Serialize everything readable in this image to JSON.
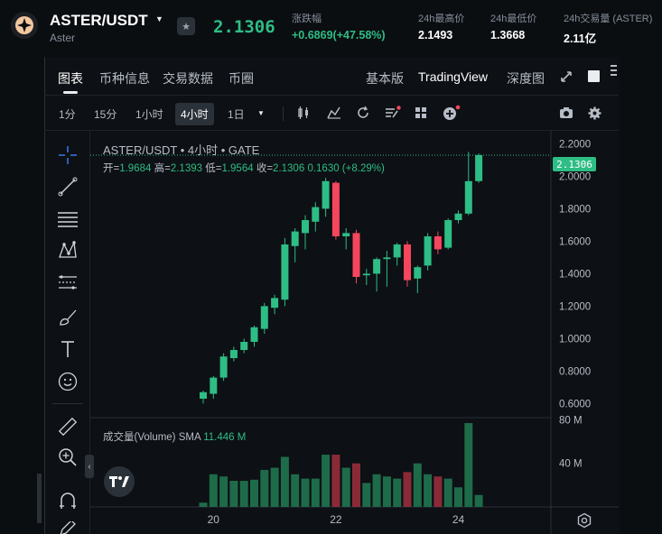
{
  "header": {
    "pair": "ASTER/USDT",
    "base_name": "Aster",
    "last_price": "2.1306",
    "stats": [
      {
        "label": "涨跌幅",
        "value": "+0.6869(+47.58%)",
        "color": "#2ebd85"
      },
      {
        "label": "24h最高价",
        "value": "2.1493",
        "color": "#ffffff"
      },
      {
        "label": "24h最低价",
        "value": "1.3668",
        "color": "#ffffff"
      },
      {
        "label": "24h交易量 (ASTER)",
        "value": "2.11亿",
        "color": "#ffffff"
      }
    ]
  },
  "tabs": {
    "left": [
      "图表",
      "币种信息",
      "交易数据",
      "币圈"
    ],
    "right": [
      "基本版",
      "TradingView",
      "深度图"
    ],
    "active": "图表"
  },
  "intervals": [
    "1分",
    "15分",
    "1小时",
    "4小时",
    "1日"
  ],
  "active_interval": "4小时",
  "legend": {
    "title": "ASTER/USDT • 4小时 • GATE",
    "open_label": "开=",
    "open": "1.9684",
    "high_label": "高=",
    "high": "2.1393",
    "low_label": "低=",
    "low": "1.9564",
    "close_label": "收=",
    "close": "2.1306",
    "change": "0.1630 (+8.29%)",
    "volume_label": "成交量(Volume)",
    "sma_label": "SMA",
    "volume_value": "11.446 M",
    "last_price_tag": "2.1306"
  },
  "colors": {
    "up": "#2ebd85",
    "down": "#f6465d",
    "accent": "#2ebd85"
  },
  "chart_data": {
    "type": "candlestick",
    "price_axis": [
      "2.2000",
      "2.0000",
      "1.8000",
      "1.6000",
      "1.4000",
      "1.2000",
      "1.0000",
      "0.8000",
      "0.6000"
    ],
    "volume_axis": [
      "80 M",
      "40 M"
    ],
    "x_ticks": [
      "20",
      "22",
      "24"
    ],
    "ylim": [
      0.53,
      2.28
    ],
    "volume_ylim": [
      0,
      82
    ],
    "candles": [
      {
        "o": 0.63,
        "h": 0.68,
        "l": 0.6,
        "c": 0.67,
        "v": 4
      },
      {
        "o": 0.66,
        "h": 0.77,
        "l": 0.63,
        "c": 0.76,
        "v": 30
      },
      {
        "o": 0.76,
        "h": 0.91,
        "l": 0.74,
        "c": 0.89,
        "v": 28
      },
      {
        "o": 0.88,
        "h": 0.95,
        "l": 0.86,
        "c": 0.93,
        "v": 24
      },
      {
        "o": 0.93,
        "h": 1.0,
        "l": 0.91,
        "c": 0.98,
        "v": 24
      },
      {
        "o": 0.98,
        "h": 1.08,
        "l": 0.95,
        "c": 1.07,
        "v": 25
      },
      {
        "o": 1.06,
        "h": 1.22,
        "l": 1.03,
        "c": 1.2,
        "v": 34
      },
      {
        "o": 1.19,
        "h": 1.27,
        "l": 1.15,
        "c": 1.25,
        "v": 36
      },
      {
        "o": 1.24,
        "h": 1.62,
        "l": 1.2,
        "c": 1.58,
        "v": 46
      },
      {
        "o": 1.57,
        "h": 1.68,
        "l": 1.47,
        "c": 1.66,
        "v": 30
      },
      {
        "o": 1.65,
        "h": 1.76,
        "l": 1.55,
        "c": 1.73,
        "v": 26
      },
      {
        "o": 1.72,
        "h": 1.84,
        "l": 1.66,
        "c": 1.81,
        "v": 26
      },
      {
        "o": 1.8,
        "h": 1.99,
        "l": 1.75,
        "c": 1.97,
        "v": 48
      },
      {
        "o": 1.96,
        "h": 1.97,
        "l": 1.61,
        "c": 1.63,
        "v": 48
      },
      {
        "o": 1.63,
        "h": 1.68,
        "l": 1.55,
        "c": 1.65,
        "v": 36
      },
      {
        "o": 1.65,
        "h": 1.67,
        "l": 1.34,
        "c": 1.38,
        "v": 40
      },
      {
        "o": 1.39,
        "h": 1.43,
        "l": 1.33,
        "c": 1.4,
        "v": 22
      },
      {
        "o": 1.4,
        "h": 1.5,
        "l": 1.29,
        "c": 1.49,
        "v": 30
      },
      {
        "o": 1.49,
        "h": 1.54,
        "l": 1.32,
        "c": 1.5,
        "v": 28
      },
      {
        "o": 1.5,
        "h": 1.59,
        "l": 1.45,
        "c": 1.58,
        "v": 26
      },
      {
        "o": 1.58,
        "h": 1.6,
        "l": 1.32,
        "c": 1.36,
        "v": 32
      },
      {
        "o": 1.37,
        "h": 1.45,
        "l": 1.28,
        "c": 1.44,
        "v": 40
      },
      {
        "o": 1.45,
        "h": 1.65,
        "l": 1.42,
        "c": 1.63,
        "v": 30
      },
      {
        "o": 1.63,
        "h": 1.66,
        "l": 1.52,
        "c": 1.55,
        "v": 28
      },
      {
        "o": 1.56,
        "h": 1.74,
        "l": 1.55,
        "c": 1.73,
        "v": 26
      },
      {
        "o": 1.73,
        "h": 1.79,
        "l": 1.71,
        "c": 1.77,
        "v": 18
      },
      {
        "o": 1.77,
        "h": 2.15,
        "l": 1.76,
        "c": 1.97,
        "v": 77
      },
      {
        "o": 1.97,
        "h": 2.14,
        "l": 1.96,
        "c": 2.13,
        "v": 11
      }
    ]
  }
}
